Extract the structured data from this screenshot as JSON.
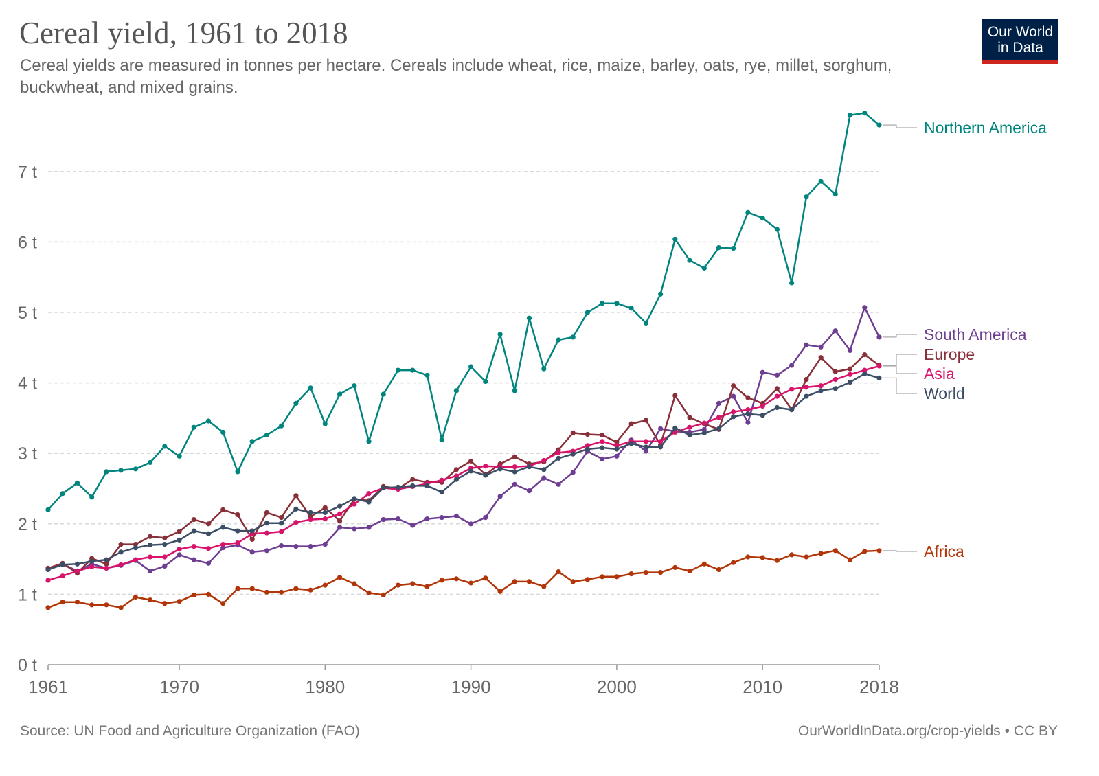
{
  "header": {
    "title": "Cereal yield, 1961 to 2018",
    "subtitle": "Cereal yields are measured in tonnes per hectare. Cereals include wheat, rice, maize, barley, oats, rye, millet, sorghum, buckwheat, and mixed grains."
  },
  "logo": {
    "line1": "Our World",
    "line2": "in Data",
    "bg_color": "#002147",
    "accent_color": "#ce261e"
  },
  "footer": {
    "source": "Source: UN Food and Agriculture Organization (FAO)",
    "url": "OurWorldInData.org/crop-yields • CC BY"
  },
  "chart_data": {
    "type": "line",
    "title": "Cereal yield, 1961 to 2018",
    "xlabel": "",
    "ylabel": "",
    "xlim": [
      1961,
      2018
    ],
    "ylim": [
      0,
      8
    ],
    "x_ticks": [
      1961,
      1970,
      1980,
      1990,
      2000,
      2010,
      2018
    ],
    "y_ticks": [
      0,
      1,
      2,
      3,
      4,
      5,
      6,
      7
    ],
    "y_unit": " t",
    "grid": "horizontal-dashed",
    "legend": "inline-right",
    "x": [
      1961,
      1962,
      1963,
      1964,
      1965,
      1966,
      1967,
      1968,
      1969,
      1970,
      1971,
      1972,
      1973,
      1974,
      1975,
      1976,
      1977,
      1978,
      1979,
      1980,
      1981,
      1982,
      1983,
      1984,
      1985,
      1986,
      1987,
      1988,
      1989,
      1990,
      1991,
      1992,
      1993,
      1994,
      1995,
      1996,
      1997,
      1998,
      1999,
      2000,
      2001,
      2002,
      2003,
      2004,
      2005,
      2006,
      2007,
      2008,
      2009,
      2010,
      2011,
      2012,
      2013,
      2014,
      2015,
      2016,
      2017,
      2018
    ],
    "series": [
      {
        "name": "Northern America",
        "color": "#00847e",
        "values": [
          2.2,
          2.43,
          2.58,
          2.38,
          2.74,
          2.76,
          2.78,
          2.87,
          3.1,
          2.96,
          3.37,
          3.46,
          3.3,
          2.74,
          3.17,
          3.26,
          3.39,
          3.71,
          3.93,
          3.42,
          3.84,
          3.96,
          3.17,
          3.84,
          4.18,
          4.18,
          4.11,
          3.19,
          3.89,
          4.23,
          4.02,
          4.69,
          3.89,
          4.92,
          4.2,
          4.61,
          4.65,
          5.0,
          5.13,
          5.13,
          5.06,
          4.85,
          5.26,
          6.04,
          5.74,
          5.63,
          5.92,
          5.91,
          6.42,
          6.34,
          6.18,
          5.42,
          6.64,
          6.86,
          6.68,
          7.8,
          7.83,
          7.66
        ]
      },
      {
        "name": "South America",
        "color": "#6d3e91",
        "values": [
          1.36,
          1.43,
          1.33,
          1.43,
          1.37,
          1.41,
          1.48,
          1.33,
          1.4,
          1.56,
          1.49,
          1.44,
          1.66,
          1.7,
          1.6,
          1.62,
          1.69,
          1.68,
          1.68,
          1.71,
          1.95,
          1.93,
          1.95,
          2.06,
          2.07,
          1.98,
          2.07,
          2.09,
          2.11,
          2.0,
          2.09,
          2.39,
          2.56,
          2.47,
          2.65,
          2.56,
          2.73,
          3.03,
          2.92,
          2.96,
          3.19,
          3.03,
          3.35,
          3.31,
          3.3,
          3.34,
          3.71,
          3.81,
          3.44,
          4.15,
          4.11,
          4.25,
          4.54,
          4.51,
          4.74,
          4.46,
          5.07,
          4.65
        ]
      },
      {
        "name": "Europe",
        "color": "#883039",
        "values": [
          1.37,
          1.44,
          1.3,
          1.51,
          1.43,
          1.71,
          1.71,
          1.82,
          1.8,
          1.89,
          2.06,
          2.0,
          2.2,
          2.13,
          1.78,
          2.16,
          2.09,
          2.4,
          2.1,
          2.23,
          2.04,
          2.35,
          2.33,
          2.53,
          2.5,
          2.63,
          2.59,
          2.59,
          2.77,
          2.89,
          2.7,
          2.85,
          2.95,
          2.85,
          2.88,
          3.05,
          3.29,
          3.27,
          3.26,
          3.16,
          3.42,
          3.47,
          3.12,
          3.82,
          3.51,
          3.42,
          3.34,
          3.96,
          3.79,
          3.71,
          3.92,
          3.62,
          4.05,
          4.36,
          4.16,
          4.2,
          4.4,
          4.25
        ]
      },
      {
        "name": "Asia",
        "color": "#d7136a",
        "values": [
          1.2,
          1.26,
          1.33,
          1.39,
          1.37,
          1.42,
          1.49,
          1.53,
          1.53,
          1.64,
          1.68,
          1.65,
          1.71,
          1.73,
          1.86,
          1.87,
          1.89,
          2.02,
          2.06,
          2.07,
          2.14,
          2.28,
          2.43,
          2.51,
          2.49,
          2.53,
          2.57,
          2.62,
          2.68,
          2.79,
          2.82,
          2.81,
          2.81,
          2.82,
          2.9,
          3.01,
          3.03,
          3.11,
          3.17,
          3.11,
          3.17,
          3.17,
          3.17,
          3.3,
          3.37,
          3.43,
          3.51,
          3.59,
          3.62,
          3.67,
          3.81,
          3.91,
          3.94,
          3.96,
          4.05,
          4.12,
          4.18,
          4.24
        ]
      },
      {
        "name": "World",
        "color": "#3c4e66",
        "values": [
          1.35,
          1.42,
          1.43,
          1.47,
          1.49,
          1.6,
          1.66,
          1.7,
          1.71,
          1.77,
          1.9,
          1.86,
          1.95,
          1.9,
          1.9,
          2.01,
          2.01,
          2.21,
          2.16,
          2.16,
          2.25,
          2.36,
          2.31,
          2.51,
          2.52,
          2.54,
          2.54,
          2.45,
          2.63,
          2.75,
          2.69,
          2.78,
          2.74,
          2.81,
          2.77,
          2.93,
          2.99,
          3.06,
          3.08,
          3.06,
          3.14,
          3.09,
          3.09,
          3.36,
          3.26,
          3.29,
          3.35,
          3.52,
          3.56,
          3.54,
          3.65,
          3.62,
          3.81,
          3.89,
          3.92,
          4.01,
          4.13,
          4.07
        ]
      },
      {
        "name": "Africa",
        "color": "#b13507",
        "values": [
          0.81,
          0.89,
          0.89,
          0.85,
          0.85,
          0.81,
          0.96,
          0.92,
          0.87,
          0.9,
          0.99,
          1.0,
          0.87,
          1.08,
          1.08,
          1.03,
          1.03,
          1.08,
          1.06,
          1.13,
          1.24,
          1.15,
          1.02,
          0.99,
          1.13,
          1.15,
          1.11,
          1.2,
          1.22,
          1.16,
          1.23,
          1.04,
          1.18,
          1.18,
          1.11,
          1.32,
          1.18,
          1.21,
          1.25,
          1.25,
          1.29,
          1.31,
          1.31,
          1.38,
          1.33,
          1.43,
          1.35,
          1.45,
          1.53,
          1.52,
          1.48,
          1.56,
          1.53,
          1.58,
          1.62,
          1.49,
          1.61,
          1.62
        ]
      }
    ]
  }
}
